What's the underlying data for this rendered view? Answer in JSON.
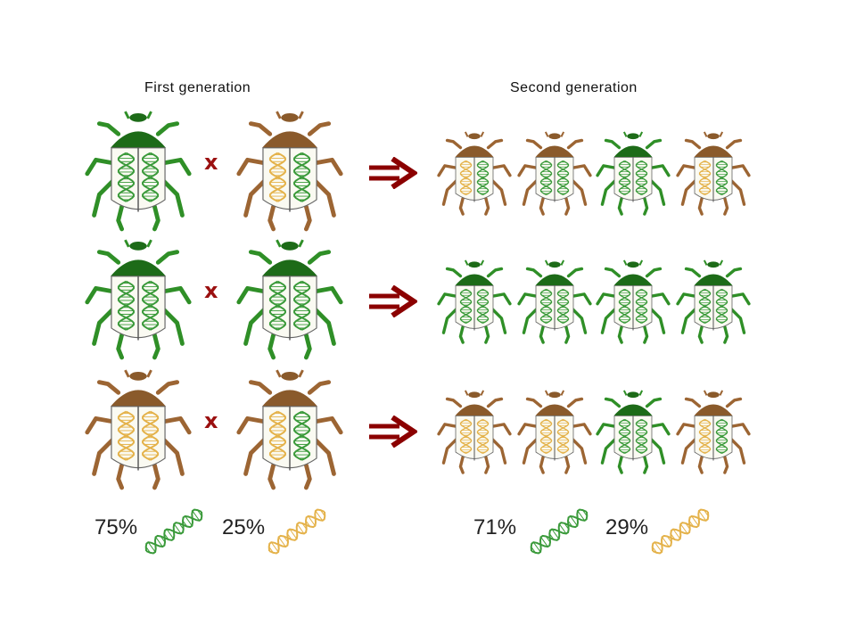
{
  "headings": {
    "first": "First generation",
    "second": "Second generation"
  },
  "cross_symbol": "x",
  "colors": {
    "green_shell": "#1d6b18",
    "green_body": "#2f8f27",
    "brown_shell": "#8a5a2b",
    "brown_body": "#9c6533",
    "green_dna": "#3a9a3a",
    "yellow_dna": "#e4b24a",
    "arrow": "#8b0000",
    "cross": "#9b1010"
  },
  "rows": [
    {
      "parents": [
        {
          "color": "green",
          "dna": "green"
        },
        {
          "color": "brown",
          "dna": "mixed"
        }
      ],
      "offspring": [
        {
          "color": "brown",
          "dna": "mixed"
        },
        {
          "color": "brown",
          "dna": "green"
        },
        {
          "color": "green",
          "dna": "green"
        },
        {
          "color": "brown",
          "dna": "mixed"
        }
      ]
    },
    {
      "parents": [
        {
          "color": "green",
          "dna": "green"
        },
        {
          "color": "green",
          "dna": "green"
        }
      ],
      "offspring": [
        {
          "color": "green",
          "dna": "green"
        },
        {
          "color": "green",
          "dna": "green"
        },
        {
          "color": "green",
          "dna": "green"
        },
        {
          "color": "green",
          "dna": "green"
        }
      ]
    },
    {
      "parents": [
        {
          "color": "brown",
          "dna": "yellow"
        },
        {
          "color": "brown",
          "dna": "mixed"
        }
      ],
      "offspring": [
        {
          "color": "brown",
          "dna": "yellow"
        },
        {
          "color": "brown",
          "dna": "yellow"
        },
        {
          "color": "green",
          "dna": "green"
        },
        {
          "color": "brown",
          "dna": "mixed"
        }
      ]
    }
  ],
  "frequencies": {
    "first": {
      "green": "75%",
      "yellow": "25%"
    },
    "second": {
      "green": "71%",
      "yellow": "29%"
    }
  }
}
